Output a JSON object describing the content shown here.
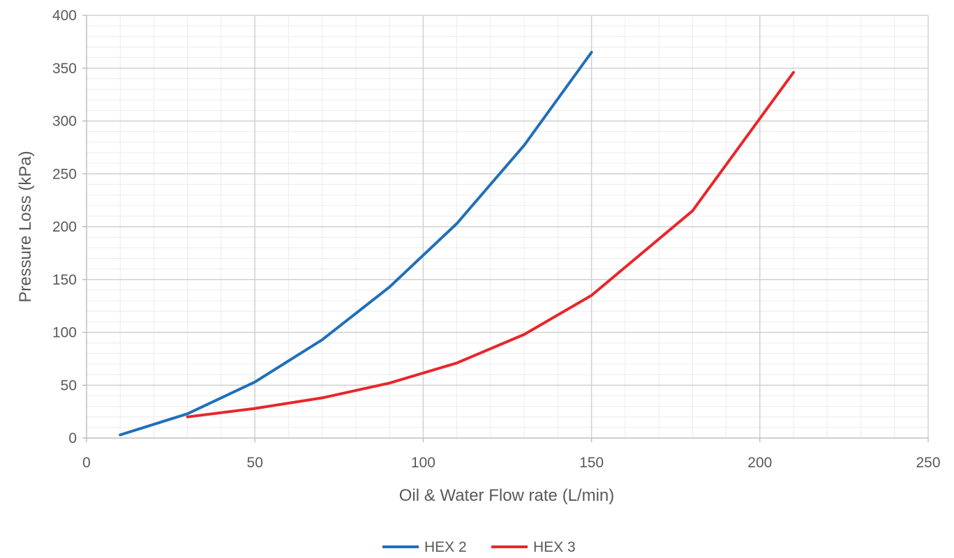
{
  "chart_data": {
    "type": "line",
    "title": "",
    "xlabel": "Oil & Water Flow rate (L/min)",
    "ylabel": "Pressure Loss (kPa)",
    "xlim": [
      0,
      250
    ],
    "ylim": [
      0,
      400
    ],
    "x_ticks": [
      0,
      50,
      100,
      150,
      200,
      250
    ],
    "y_ticks": [
      0,
      50,
      100,
      150,
      200,
      250,
      300,
      350,
      400
    ],
    "x_tick_labels": [
      "0",
      "50",
      "100",
      "150",
      "200",
      "250"
    ],
    "y_tick_labels": [
      "0",
      "50",
      "100",
      "150",
      "200",
      "250",
      "300",
      "350",
      "400"
    ],
    "x_minor_step": 10,
    "y_minor_step": 10,
    "grid": true,
    "legend_position": "bottom-center",
    "series": [
      {
        "name": "HEX 2",
        "color": "#1f6fba",
        "points": [
          [
            10,
            3
          ],
          [
            30,
            23
          ],
          [
            50,
            53
          ],
          [
            70,
            93
          ],
          [
            90,
            143
          ],
          [
            110,
            203
          ],
          [
            130,
            277
          ],
          [
            150,
            365
          ]
        ]
      },
      {
        "name": "HEX 3",
        "color": "#e8262b",
        "points": [
          [
            30,
            20
          ],
          [
            50,
            28
          ],
          [
            70,
            38
          ],
          [
            90,
            52
          ],
          [
            110,
            71
          ],
          [
            130,
            98
          ],
          [
            150,
            135
          ],
          [
            180,
            215
          ],
          [
            210,
            346
          ]
        ]
      }
    ]
  }
}
